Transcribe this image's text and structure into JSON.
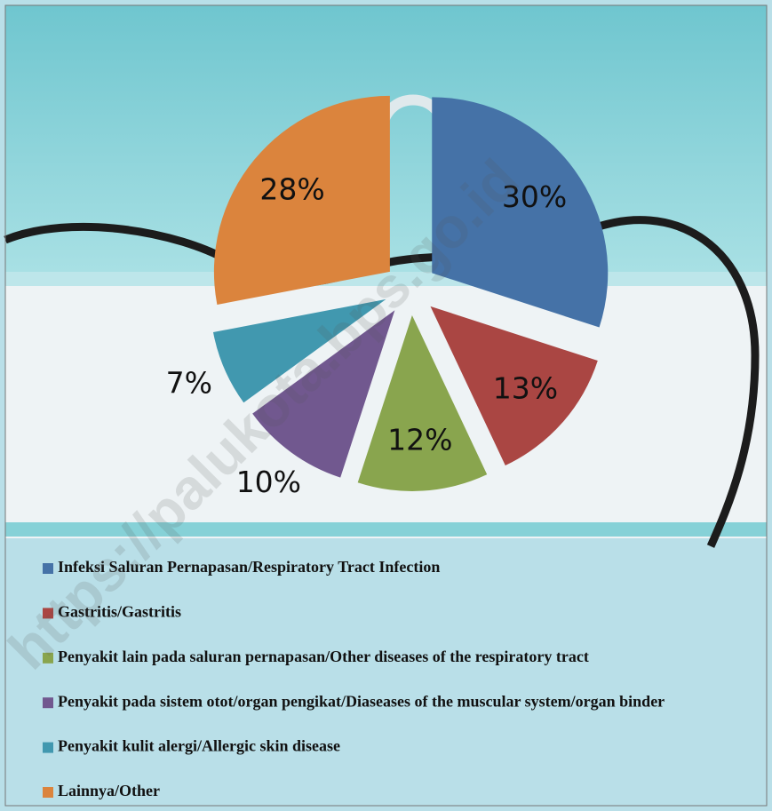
{
  "chart_data": {
    "type": "pie",
    "categories": [
      "Infeksi Saluran Pernapasan/Respiratory Tract Infection",
      "Gastritis/Gastritis",
      "Penyakit lain pada saluran pernapasan/Other diseases of the respiratory tract",
      "Penyakit pada sistem otot/organ pengikat/Diaseases of the muscular system/organ binder",
      "Penyakit kulit alergi/Allergic skin disease",
      "Lainnya/Other"
    ],
    "values": [
      30,
      13,
      12,
      10,
      7,
      28
    ],
    "value_labels": [
      "30%",
      "13%",
      "12%",
      "10%",
      "7%",
      "28%"
    ],
    "colors": [
      "#4572a7",
      "#aa4643",
      "#89a54e",
      "#71588f",
      "#4198af",
      "#db843d"
    ],
    "watermark": "https://palukota.bps.go.id"
  }
}
